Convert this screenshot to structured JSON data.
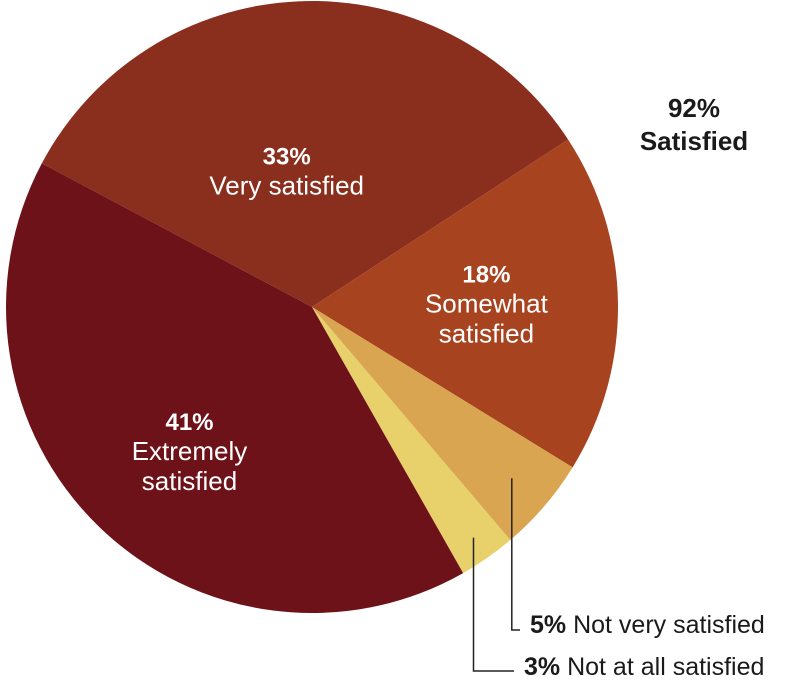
{
  "chart_data": {
    "type": "pie",
    "slices": [
      {
        "name": "Very satisfied",
        "value": 33,
        "label_pct": "33%",
        "label_lines": [
          "Very satisfied"
        ],
        "color": "#8a2e1d",
        "label_style": "inside"
      },
      {
        "name": "Somewhat satisfied",
        "value": 18,
        "label_pct": "18%",
        "label_lines": [
          "Somewhat",
          "satisfied"
        ],
        "color": "#a84320",
        "label_style": "inside"
      },
      {
        "name": "Not very satisfied",
        "value": 5,
        "label_pct": "5%",
        "label_lines": [
          "Not very satisfied"
        ],
        "color": "#d9a550",
        "label_style": "callout"
      },
      {
        "name": "Not at all satisfied",
        "value": 3,
        "label_pct": "3%",
        "label_lines": [
          "Not at all satisfied"
        ],
        "color": "#e8d06a",
        "label_style": "callout"
      },
      {
        "name": "Extremely satisfied",
        "value": 41,
        "label_pct": "41%",
        "label_lines": [
          "Extremely",
          "satisfied"
        ],
        "color": "#6e1219",
        "label_style": "inside"
      }
    ],
    "summary": {
      "pct": "92%",
      "label": "Satisfied"
    },
    "legend": "none"
  }
}
